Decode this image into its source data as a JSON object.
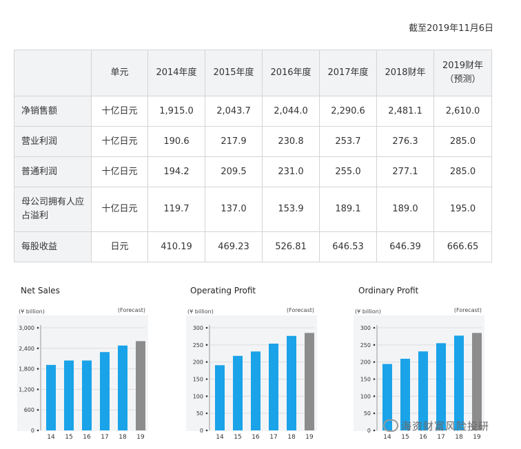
{
  "date_note": "截至2019年11月6日",
  "table": {
    "headers": [
      "",
      "单元",
      "2014年度",
      "2015年度",
      "2016年度",
      "2017年度",
      "2018财年",
      "2019财年 （预测）"
    ],
    "rows": [
      {
        "label": "净销售额",
        "unit": "十亿日元",
        "values": [
          "1,915.0",
          "2,043.7",
          "2,044.0",
          "2,290.6",
          "2,481.1",
          "2,610.0"
        ]
      },
      {
        "label": "营业利润",
        "unit": "十亿日元",
        "values": [
          "190.6",
          "217.9",
          "230.8",
          "253.7",
          "276.3",
          "285.0"
        ]
      },
      {
        "label": "普通利润",
        "unit": "十亿日元",
        "values": [
          "194.2",
          "209.5",
          "231.0",
          "255.0",
          "277.1",
          "285.0"
        ]
      },
      {
        "label": "母公司拥有人应占溢利",
        "unit": "十亿日元",
        "values": [
          "119.7",
          "137.0",
          "153.9",
          "189.1",
          "189.0",
          "195.0"
        ]
      },
      {
        "label": "每股收益",
        "unit": "日元",
        "values": [
          "410.19",
          "469.23",
          "526.81",
          "646.53",
          "646.39",
          "666.65"
        ]
      }
    ]
  },
  "chart_data": [
    {
      "type": "bar",
      "title": "Net Sales",
      "unit_label": "(¥ billion)",
      "forecast_label": "(Forecast)",
      "categories": [
        "14",
        "15",
        "16",
        "17",
        "18",
        "19"
      ],
      "values": [
        1915.0,
        2043.7,
        2044.0,
        2290.6,
        2481.1,
        2610.0
      ],
      "forecast_index": 5,
      "ylim": [
        0,
        3000
      ],
      "yticks": [
        0,
        600,
        1200,
        1800,
        2400,
        3000
      ],
      "ytick_labels": [
        "0",
        "600",
        "1,200",
        "1,800",
        "2,400",
        "3,000"
      ],
      "grid": true
    },
    {
      "type": "bar",
      "title": "Operating Profit",
      "unit_label": "(¥ billion)",
      "forecast_label": "(Forecast)",
      "categories": [
        "14",
        "15",
        "16",
        "17",
        "18",
        "19"
      ],
      "values": [
        190.6,
        217.9,
        230.8,
        253.7,
        276.3,
        285.0
      ],
      "forecast_index": 5,
      "ylim": [
        0,
        300
      ],
      "yticks": [
        0,
        50,
        100,
        150,
        200,
        250,
        300
      ],
      "ytick_labels": [
        "0",
        "50",
        "100",
        "150",
        "200",
        "250",
        "300"
      ],
      "grid": true
    },
    {
      "type": "bar",
      "title": "Ordinary Profit",
      "unit_label": "(¥ billion)",
      "forecast_label": "(Forecast)",
      "categories": [
        "14",
        "15",
        "16",
        "17",
        "18",
        "19"
      ],
      "values": [
        194.2,
        209.5,
        231.0,
        255.0,
        277.1,
        285.0
      ],
      "forecast_index": 5,
      "ylim": [
        0,
        300
      ],
      "yticks": [
        0,
        50,
        100,
        150,
        200,
        250,
        300
      ],
      "ytick_labels": [
        "0",
        "50",
        "100",
        "150",
        "200",
        "250",
        "300"
      ],
      "grid": true
    }
  ],
  "colors": {
    "bar": "#1aa3e8",
    "forecast_bar": "#8c8c8c",
    "chart_bg": "#f3f4f6",
    "grid": "#dcdcdc"
  },
  "watermark": "海资财富风险投研"
}
